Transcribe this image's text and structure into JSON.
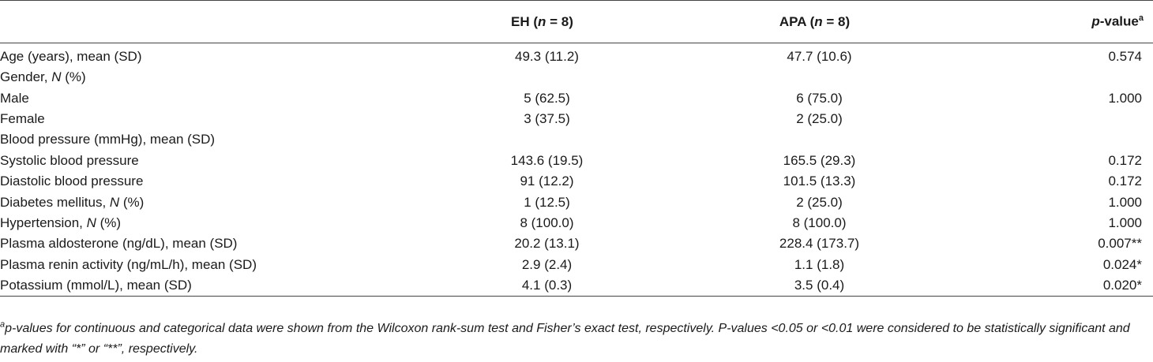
{
  "table": {
    "headers": {
      "blank": "",
      "eh_prefix": "EH (",
      "eh_n": "n",
      "eh_suffix": " = 8)",
      "apa_prefix": "APA (",
      "apa_n": "n",
      "apa_suffix": " = 8)",
      "p_italic": "p",
      "p_rest": "-value",
      "p_sup": "a"
    },
    "rows": [
      {
        "label": "Age (years), mean (SD)",
        "label_italic": "",
        "label_after": "",
        "eh": "49.3 (11.2)",
        "apa": "47.7 (10.6)",
        "p": "0.574"
      },
      {
        "label": "Gender, ",
        "label_italic": "N",
        "label_after": " (%)",
        "eh": "",
        "apa": "",
        "p": ""
      },
      {
        "label": "Male",
        "label_italic": "",
        "label_after": "",
        "eh": "5 (62.5)",
        "apa": "6 (75.0)",
        "p": "1.000"
      },
      {
        "label": "Female",
        "label_italic": "",
        "label_after": "",
        "eh": "3 (37.5)",
        "apa": "2 (25.0)",
        "p": ""
      },
      {
        "label": "Blood pressure (mmHg), mean (SD)",
        "label_italic": "",
        "label_after": "",
        "eh": "",
        "apa": "",
        "p": ""
      },
      {
        "label": "Systolic blood pressure",
        "label_italic": "",
        "label_after": "",
        "eh": "143.6 (19.5)",
        "apa": "165.5 (29.3)",
        "p": "0.172"
      },
      {
        "label": "Diastolic blood pressure",
        "label_italic": "",
        "label_after": "",
        "eh": "91 (12.2)",
        "apa": "101.5 (13.3)",
        "p": "0.172"
      },
      {
        "label": "Diabetes mellitus, ",
        "label_italic": "N",
        "label_after": " (%)",
        "eh": "1 (12.5)",
        "apa": "2 (25.0)",
        "p": "1.000"
      },
      {
        "label": "Hypertension, ",
        "label_italic": "N",
        "label_after": " (%)",
        "eh": "8 (100.0)",
        "apa": "8 (100.0)",
        "p": "1.000"
      },
      {
        "label": "Plasma aldosterone (ng/dL), mean (SD)",
        "label_italic": "",
        "label_after": "",
        "eh": "20.2 (13.1)",
        "apa": "228.4 (173.7)",
        "p": "0.007**"
      },
      {
        "label": "Plasma renin activity (ng/mL/h), mean (SD)",
        "label_italic": "",
        "label_after": "",
        "eh": "2.9 (2.4)",
        "apa": "1.1 (1.8)",
        "p": "0.024*"
      },
      {
        "label": "Potassium (mmol/L), mean (SD)",
        "label_italic": "",
        "label_after": "",
        "eh": "4.1 (0.3)",
        "apa": "3.5 (0.4)",
        "p": "0.020*"
      }
    ]
  },
  "footnote": {
    "sup": "a",
    "text": "p-values for continuous and categorical data were shown from the Wilcoxon rank-sum test and Fisher’s exact test, respectively. P-values <0.05 or <0.01 were considered to be statistically significant and marked with “*” or “**”, respectively."
  }
}
